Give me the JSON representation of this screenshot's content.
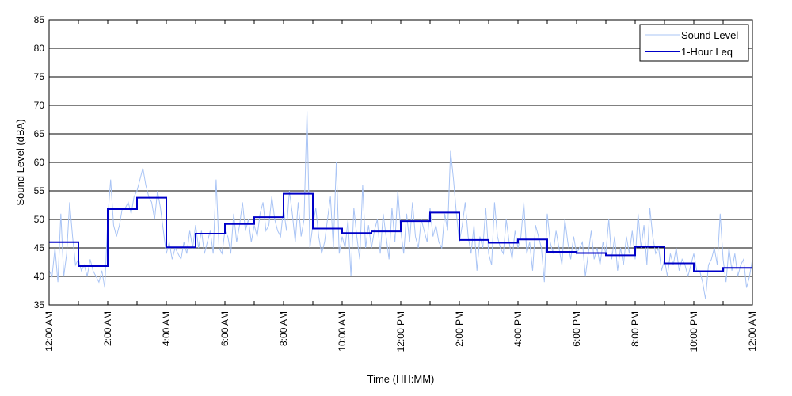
{
  "chart_data": {
    "type": "line",
    "title": "",
    "xlabel": "Time (HH:MM)",
    "ylabel": "Sound Level (dBA)",
    "ylim": [
      35,
      85
    ],
    "xlim": [
      0,
      24
    ],
    "y_ticks": [
      "35",
      "40",
      "45",
      "50",
      "55",
      "60",
      "65",
      "70",
      "75",
      "80",
      "85"
    ],
    "x_tick_labels": [
      {
        "hour": 0,
        "label": "12:00 AM"
      },
      {
        "hour": 2,
        "label": "2:00 AM"
      },
      {
        "hour": 4,
        "label": "4:00 AM"
      },
      {
        "hour": 6,
        "label": "6:00 AM"
      },
      {
        "hour": 8,
        "label": "8:00 AM"
      },
      {
        "hour": 10,
        "label": "10:00 AM"
      },
      {
        "hour": 12,
        "label": "12:00 PM"
      },
      {
        "hour": 14,
        "label": "2:00 PM"
      },
      {
        "hour": 16,
        "label": "4:00 PM"
      },
      {
        "hour": 18,
        "label": "6:00 PM"
      },
      {
        "hour": 20,
        "label": "8:00 PM"
      },
      {
        "hour": 22,
        "label": "10:00 PM"
      },
      {
        "hour": 24,
        "label": "12:00 AM"
      }
    ],
    "grid": "horizontal",
    "legend_position": "top-right",
    "series": [
      {
        "name": "Sound Level",
        "color": "#a9c4f5",
        "style": "thin-line",
        "x": [
          0.0,
          0.1,
          0.2,
          0.3,
          0.4,
          0.5,
          0.6,
          0.7,
          0.8,
          0.9,
          1.0,
          1.1,
          1.2,
          1.3,
          1.4,
          1.5,
          1.6,
          1.7,
          1.8,
          1.9,
          2.0,
          2.1,
          2.2,
          2.3,
          2.4,
          2.5,
          2.6,
          2.7,
          2.8,
          2.9,
          3.0,
          3.1,
          3.2,
          3.3,
          3.4,
          3.5,
          3.6,
          3.7,
          3.8,
          3.9,
          4.0,
          4.1,
          4.2,
          4.3,
          4.4,
          4.5,
          4.6,
          4.7,
          4.8,
          4.9,
          5.0,
          5.1,
          5.2,
          5.3,
          5.4,
          5.5,
          5.6,
          5.7,
          5.8,
          5.9,
          6.0,
          6.1,
          6.2,
          6.3,
          6.4,
          6.5,
          6.6,
          6.7,
          6.8,
          6.9,
          7.0,
          7.1,
          7.2,
          7.3,
          7.4,
          7.5,
          7.6,
          7.7,
          7.8,
          7.9,
          8.0,
          8.1,
          8.2,
          8.3,
          8.4,
          8.5,
          8.6,
          8.7,
          8.8,
          8.9,
          9.0,
          9.1,
          9.2,
          9.3,
          9.4,
          9.5,
          9.6,
          9.7,
          9.8,
          9.9,
          10.0,
          10.1,
          10.2,
          10.3,
          10.4,
          10.5,
          10.6,
          10.7,
          10.8,
          10.9,
          11.0,
          11.1,
          11.2,
          11.3,
          11.4,
          11.5,
          11.6,
          11.7,
          11.8,
          11.9,
          12.0,
          12.1,
          12.2,
          12.3,
          12.4,
          12.5,
          12.6,
          12.7,
          12.8,
          12.9,
          13.0,
          13.1,
          13.2,
          13.3,
          13.4,
          13.5,
          13.6,
          13.7,
          13.8,
          13.9,
          14.0,
          14.1,
          14.2,
          14.3,
          14.4,
          14.5,
          14.6,
          14.7,
          14.8,
          14.9,
          15.0,
          15.1,
          15.2,
          15.3,
          15.4,
          15.5,
          15.6,
          15.7,
          15.8,
          15.9,
          16.0,
          16.1,
          16.2,
          16.3,
          16.4,
          16.5,
          16.6,
          16.7,
          16.8,
          16.9,
          17.0,
          17.1,
          17.2,
          17.3,
          17.4,
          17.5,
          17.6,
          17.7,
          17.8,
          17.9,
          18.0,
          18.1,
          18.2,
          18.3,
          18.4,
          18.5,
          18.6,
          18.7,
          18.8,
          18.9,
          19.0,
          19.1,
          19.2,
          19.3,
          19.4,
          19.5,
          19.6,
          19.7,
          19.8,
          19.9,
          20.0,
          20.1,
          20.2,
          20.3,
          20.4,
          20.5,
          20.6,
          20.7,
          20.8,
          20.9,
          21.0,
          21.1,
          21.2,
          21.3,
          21.4,
          21.5,
          21.6,
          21.7,
          21.8,
          21.9,
          22.0,
          22.1,
          22.2,
          22.3,
          22.4,
          22.5,
          22.6,
          22.7,
          22.8,
          22.9,
          23.0,
          23.1,
          23.2,
          23.3,
          23.4,
          23.5,
          23.6,
          23.7,
          23.8,
          23.9,
          24.0
        ],
        "values": [
          41,
          40,
          45,
          39,
          51,
          40,
          44,
          53,
          47,
          42,
          43,
          41,
          42,
          40,
          43,
          41,
          40,
          39,
          41,
          38,
          50,
          57,
          49,
          47,
          49,
          52,
          52,
          53,
          51,
          54,
          55,
          57,
          59,
          56,
          54,
          53,
          50,
          55,
          52,
          48,
          44,
          46,
          43,
          45,
          44,
          43,
          46,
          44,
          48,
          45,
          49,
          45,
          48,
          44,
          46,
          48,
          44,
          57,
          45,
          44,
          48,
          47,
          44,
          51,
          46,
          49,
          53,
          48,
          50,
          46,
          49,
          47,
          51,
          53,
          48,
          49,
          54,
          50,
          48,
          47,
          52,
          48,
          55,
          51,
          46,
          53,
          47,
          50,
          69,
          45,
          49,
          52,
          47,
          44,
          46,
          50,
          54,
          45,
          60,
          44,
          47,
          45,
          50,
          40,
          52,
          47,
          43,
          56,
          45,
          49,
          45,
          48,
          50,
          44,
          51,
          47,
          43,
          52,
          46,
          55,
          48,
          44,
          51,
          46,
          53,
          47,
          45,
          50,
          48,
          46,
          52,
          47,
          49,
          46,
          45,
          51,
          48,
          62,
          57,
          51,
          46,
          49,
          53,
          47,
          44,
          49,
          41,
          47,
          45,
          52,
          44,
          42,
          53,
          47,
          45,
          44,
          50,
          46,
          43,
          48,
          45,
          47,
          53,
          44,
          46,
          41,
          49,
          47,
          45,
          39,
          51,
          46,
          44,
          48,
          45,
          42,
          50,
          46,
          43,
          47,
          44,
          45,
          46,
          40,
          44,
          48,
          43,
          45,
          42,
          46,
          44,
          50,
          43,
          47,
          41,
          45,
          42,
          47,
          44,
          48,
          43,
          51,
          45,
          49,
          42,
          52,
          47,
          44,
          45,
          41,
          43,
          40,
          44,
          42,
          45,
          41,
          43,
          42,
          40,
          42,
          44,
          41,
          41,
          39,
          36,
          42,
          43,
          45,
          42,
          51,
          43,
          39,
          45,
          41,
          44,
          40,
          42,
          43,
          38,
          40,
          43
        ]
      },
      {
        "name": "1-Hour Leq",
        "color": "#0000c8",
        "style": "step",
        "hours": [
          0,
          1,
          2,
          3,
          4,
          5,
          6,
          7,
          8,
          9,
          10,
          11,
          12,
          13,
          14,
          15,
          16,
          17,
          18,
          19,
          20,
          21,
          22,
          23
        ],
        "values": [
          46.0,
          41.8,
          51.8,
          53.8,
          45.1,
          47.5,
          49.2,
          50.4,
          54.5,
          48.4,
          47.6,
          47.9,
          49.7,
          51.2,
          46.4,
          45.9,
          46.5,
          44.3,
          44.1,
          43.7,
          45.2,
          42.3,
          40.9,
          41.5
        ]
      }
    ]
  }
}
